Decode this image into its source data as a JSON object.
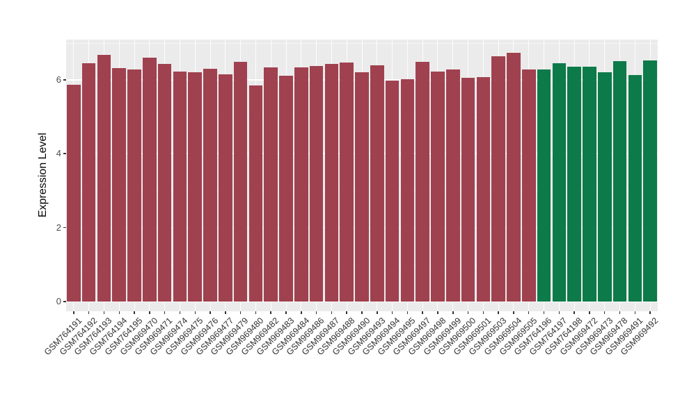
{
  "chart_data": {
    "type": "bar",
    "title": "",
    "xlabel": "",
    "ylabel": "Expression Level",
    "ylim": [
      -0.26,
      7.09
    ],
    "yticks": [
      0,
      2,
      4,
      6
    ],
    "yticks_minor": [
      1,
      3,
      5,
      7
    ],
    "grid": true,
    "legend": "none",
    "panel_background": "#EBEBEB",
    "grid_color": "#FFFFFF",
    "group_colors": {
      "maroon": "#A0414F",
      "green": "#0D7A4A"
    },
    "categories": [
      "GSM764191",
      "GSM764192",
      "GSM764193",
      "GSM764194",
      "GSM764195",
      "GSM969470",
      "GSM969471",
      "GSM969474",
      "GSM969475",
      "GSM969476",
      "GSM969477",
      "GSM969479",
      "GSM969480",
      "GSM969482",
      "GSM969483",
      "GSM969484",
      "GSM969486",
      "GSM969487",
      "GSM969488",
      "GSM969490",
      "GSM969493",
      "GSM969494",
      "GSM969495",
      "GSM969497",
      "GSM969498",
      "GSM969499",
      "GSM969500",
      "GSM969501",
      "GSM969503",
      "GSM969504",
      "GSM969505",
      "GSM764196",
      "GSM764197",
      "GSM764198",
      "GSM969472",
      "GSM969473",
      "GSM969478",
      "GSM969491",
      "GSM969492"
    ],
    "values": [
      5.87,
      6.45,
      6.67,
      6.32,
      6.28,
      6.6,
      6.42,
      6.23,
      6.2,
      6.3,
      6.15,
      6.48,
      5.85,
      6.33,
      6.1,
      6.33,
      6.37,
      6.42,
      6.47,
      6.2,
      6.4,
      5.98,
      6.02,
      6.48,
      6.22,
      6.28,
      6.05,
      6.08,
      6.63,
      6.72,
      6.28,
      6.28,
      6.45,
      6.35,
      6.35,
      6.2,
      6.5,
      6.12,
      6.53
    ],
    "colors": [
      "#A0414F",
      "#A0414F",
      "#A0414F",
      "#A0414F",
      "#A0414F",
      "#A0414F",
      "#A0414F",
      "#A0414F",
      "#A0414F",
      "#A0414F",
      "#A0414F",
      "#A0414F",
      "#A0414F",
      "#A0414F",
      "#A0414F",
      "#A0414F",
      "#A0414F",
      "#A0414F",
      "#A0414F",
      "#A0414F",
      "#A0414F",
      "#A0414F",
      "#A0414F",
      "#A0414F",
      "#A0414F",
      "#A0414F",
      "#A0414F",
      "#A0414F",
      "#A0414F",
      "#A0414F",
      "#A0414F",
      "#0D7A4A",
      "#0D7A4A",
      "#0D7A4A",
      "#0D7A4A",
      "#0D7A4A",
      "#0D7A4A",
      "#0D7A4A",
      "#0D7A4A"
    ]
  }
}
